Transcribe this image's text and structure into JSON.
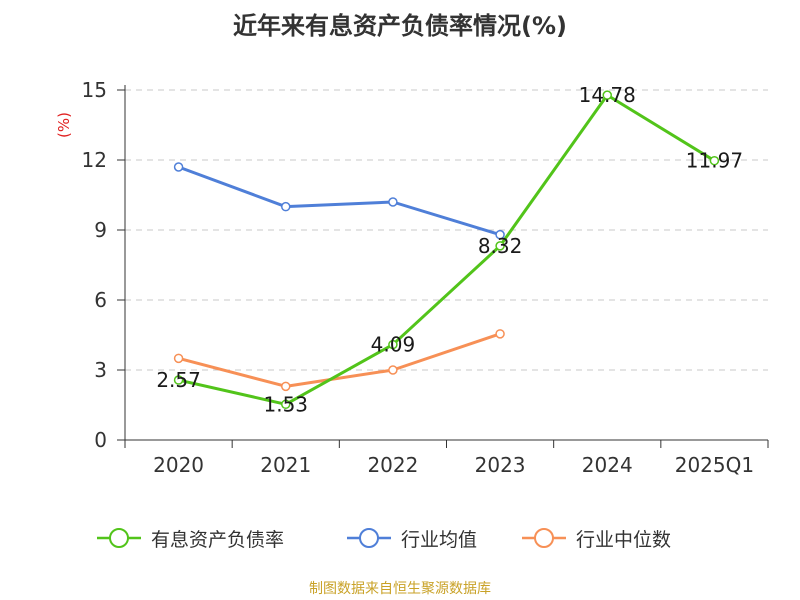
{
  "title": "近年来有息资产负债率情况(%)",
  "source": "制图数据来自恒生聚源数据库",
  "chart_data": {
    "type": "line",
    "title": "近年来有息资产负债率情况(%)",
    "ylabel": "(%)",
    "xlabel": "",
    "categories": [
      "2020",
      "2021",
      "2022",
      "2023",
      "2024",
      "2025Q1"
    ],
    "ylim": [
      0,
      15
    ],
    "yticks": [
      0,
      3,
      6,
      9,
      12,
      15
    ],
    "grid": "dashed horizontal",
    "legend_position": "bottom",
    "series": [
      {
        "name": "有息资产负债率",
        "color": "#52c41a",
        "values": [
          2.57,
          1.53,
          4.09,
          8.32,
          14.78,
          11.97
        ],
        "labeled": true
      },
      {
        "name": "行业均值",
        "color": "#4f7fd8",
        "values": [
          11.7,
          10.0,
          10.2,
          8.8,
          null,
          null
        ],
        "labeled": false
      },
      {
        "name": "行业中位数",
        "color": "#f79056",
        "values": [
          3.5,
          2.3,
          3.0,
          4.55,
          null,
          null
        ],
        "labeled": false
      }
    ],
    "data_labels": [
      "2.57",
      "1.53",
      "4.09",
      "8.32",
      "14.78",
      "11.97"
    ]
  }
}
